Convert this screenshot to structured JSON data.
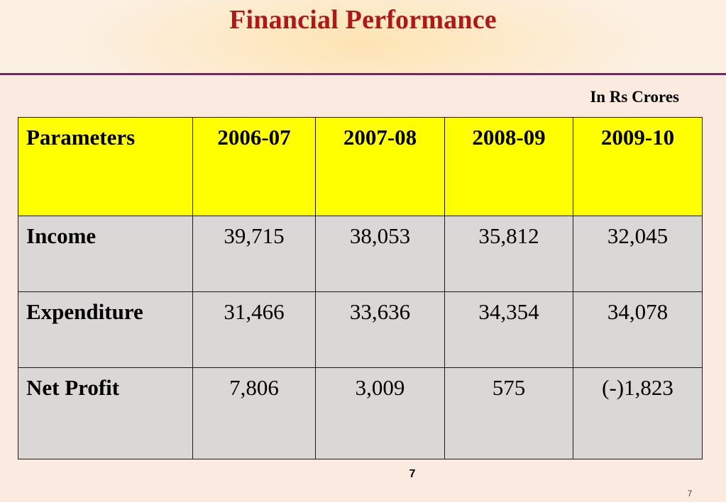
{
  "slide": {
    "title": "Financial Performance",
    "units_note": "In Rs Crores",
    "page_number_center": "7",
    "page_number_corner": "7"
  },
  "colors": {
    "title": "#b01818",
    "header_rule": "#7a1d7e",
    "table_header_fill": "#ffff00",
    "table_body_fill": "#dad7d7",
    "background": "#fbeadf"
  },
  "table": {
    "headers": [
      "Parameters",
      "2006-07",
      "2007-08",
      "2008-09",
      "2009-10"
    ],
    "rows": [
      {
        "label": "Income",
        "values": [
          "39,715",
          "38,053",
          "35,812",
          "32,045"
        ]
      },
      {
        "label": "Expenditure",
        "values": [
          "31,466",
          "33,636",
          "34,354",
          "34,078"
        ]
      },
      {
        "label": "Net Profit",
        "values": [
          "7,806",
          "3,009",
          "575",
          "(-)1,823"
        ]
      }
    ]
  }
}
